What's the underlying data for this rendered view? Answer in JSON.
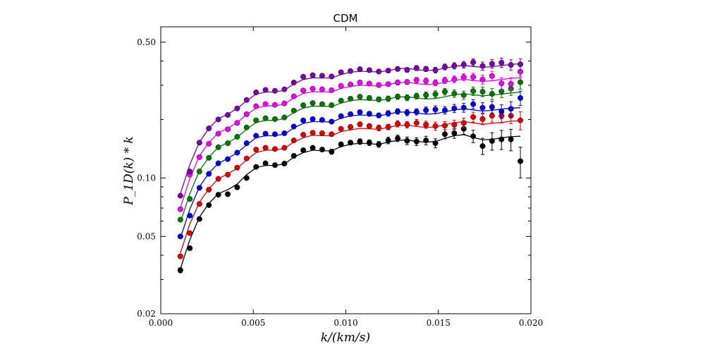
{
  "chart_data": {
    "type": "scatter",
    "title": "CDM",
    "xlabel": "k/(km/s)",
    "ylabel": "P_1D(k) * k",
    "xlim": [
      0.0,
      0.02
    ],
    "ylim": [
      0.02,
      0.6
    ],
    "yscale": "log",
    "xticks": [
      0.0,
      0.005,
      0.01,
      0.015,
      0.02
    ],
    "xtick_labels": [
      "0.000",
      "0.005",
      "0.010",
      "0.015",
      "0.020"
    ],
    "yticks": [
      0.02,
      0.05,
      0.1,
      0.5
    ],
    "ytick_labels": [
      "0.02",
      "0.05",
      "0.10",
      "0.50"
    ],
    "legend": "none",
    "grid": false,
    "x": [
      0.00106,
      0.00157,
      0.00209,
      0.0026,
      0.00311,
      0.00362,
      0.00413,
      0.00464,
      0.00515,
      0.00566,
      0.00617,
      0.00668,
      0.00719,
      0.0077,
      0.00821,
      0.00872,
      0.00923,
      0.00974,
      0.01025,
      0.01076,
      0.01127,
      0.01178,
      0.01229,
      0.0128,
      0.01331,
      0.01382,
      0.01433,
      0.01484,
      0.01535,
      0.01586,
      0.01637,
      0.01688,
      0.01739,
      0.0179,
      0.01841,
      0.01892,
      0.01943
    ],
    "series": [
      {
        "color": "#000000",
        "points": [
          0.0335,
          0.0435,
          0.0615,
          0.0725,
          0.082,
          0.0825,
          0.0895,
          0.1,
          0.114,
          0.119,
          0.1165,
          0.1185,
          0.13,
          0.139,
          0.143,
          0.14,
          0.1365,
          0.149,
          0.152,
          0.154,
          0.152,
          0.149,
          0.156,
          0.16,
          0.1555,
          0.154,
          0.156,
          0.151,
          0.168,
          0.17,
          0.179,
          0.164,
          0.146,
          0.155,
          0.158,
          0.158,
          0.122
        ],
        "errors": [
          0.001,
          0.001,
          0.001,
          0.001,
          0.001,
          0.001,
          0.002,
          0.002,
          0.002,
          0.002,
          0.002,
          0.002,
          0.003,
          0.003,
          0.003,
          0.003,
          0.004,
          0.004,
          0.004,
          0.005,
          0.005,
          0.005,
          0.006,
          0.006,
          0.007,
          0.007,
          0.008,
          0.008,
          0.009,
          0.01,
          0.011,
          0.012,
          0.014,
          0.016,
          0.018,
          0.02,
          0.022
        ],
        "model": [
          0.034,
          0.048,
          0.063,
          0.074,
          0.083,
          0.087,
          0.093,
          0.104,
          0.113,
          0.116,
          0.116,
          0.118,
          0.128,
          0.135,
          0.139,
          0.138,
          0.138,
          0.145,
          0.149,
          0.151,
          0.15,
          0.149,
          0.153,
          0.156,
          0.157,
          0.154,
          0.153,
          0.154,
          0.16,
          0.165,
          0.167,
          0.162,
          0.157,
          0.158,
          0.161,
          0.163,
          0.164
        ]
      },
      {
        "color": "#dd0000",
        "points": [
          0.0395,
          0.052,
          0.0735,
          0.087,
          0.099,
          0.104,
          0.113,
          0.126,
          0.14,
          0.143,
          0.141,
          0.143,
          0.156,
          0.167,
          0.171,
          0.17,
          0.168,
          0.179,
          0.183,
          0.189,
          0.185,
          0.181,
          0.183,
          0.19,
          0.188,
          0.192,
          0.188,
          0.185,
          0.186,
          0.188,
          0.192,
          0.206,
          0.201,
          0.209,
          0.209,
          0.209,
          0.198
        ],
        "errors": [
          0.001,
          0.001,
          0.001,
          0.001,
          0.001,
          0.001,
          0.002,
          0.002,
          0.002,
          0.002,
          0.002,
          0.003,
          0.003,
          0.003,
          0.003,
          0.004,
          0.004,
          0.004,
          0.005,
          0.005,
          0.005,
          0.006,
          0.006,
          0.007,
          0.007,
          0.008,
          0.008,
          0.009,
          0.009,
          0.01,
          0.011,
          0.012,
          0.013,
          0.015,
          0.017,
          0.019,
          0.021
        ],
        "model": [
          0.041,
          0.058,
          0.075,
          0.088,
          0.099,
          0.105,
          0.112,
          0.124,
          0.135,
          0.139,
          0.139,
          0.142,
          0.153,
          0.161,
          0.166,
          0.165,
          0.165,
          0.173,
          0.177,
          0.18,
          0.179,
          0.178,
          0.182,
          0.186,
          0.187,
          0.184,
          0.182,
          0.183,
          0.188,
          0.192,
          0.195,
          0.192,
          0.189,
          0.191,
          0.193,
          0.196,
          0.197
        ]
      },
      {
        "color": "#0000dd",
        "points": [
          0.05,
          0.064,
          0.089,
          0.105,
          0.119,
          0.125,
          0.135,
          0.151,
          0.165,
          0.169,
          0.168,
          0.17,
          0.184,
          0.198,
          0.201,
          0.199,
          0.195,
          0.208,
          0.213,
          0.218,
          0.214,
          0.21,
          0.215,
          0.22,
          0.217,
          0.219,
          0.223,
          0.225,
          0.223,
          0.228,
          0.23,
          0.24,
          0.23,
          0.232,
          0.22,
          0.227,
          0.258
        ],
        "errors": [
          0.001,
          0.001,
          0.001,
          0.001,
          0.002,
          0.002,
          0.002,
          0.002,
          0.002,
          0.003,
          0.003,
          0.003,
          0.003,
          0.004,
          0.004,
          0.004,
          0.005,
          0.005,
          0.005,
          0.006,
          0.006,
          0.006,
          0.007,
          0.007,
          0.008,
          0.008,
          0.009,
          0.01,
          0.01,
          0.011,
          0.012,
          0.013,
          0.014,
          0.016,
          0.018,
          0.02,
          0.022
        ],
        "model": [
          0.049,
          0.069,
          0.09,
          0.106,
          0.119,
          0.126,
          0.135,
          0.148,
          0.161,
          0.165,
          0.165,
          0.168,
          0.181,
          0.191,
          0.195,
          0.195,
          0.194,
          0.203,
          0.209,
          0.211,
          0.21,
          0.209,
          0.213,
          0.218,
          0.219,
          0.216,
          0.213,
          0.214,
          0.219,
          0.224,
          0.227,
          0.224,
          0.221,
          0.223,
          0.226,
          0.229,
          0.23
        ]
      },
      {
        "color": "#007700",
        "points": [
          0.061,
          0.078,
          0.108,
          0.127,
          0.144,
          0.151,
          0.163,
          0.182,
          0.198,
          0.203,
          0.201,
          0.205,
          0.222,
          0.237,
          0.243,
          0.24,
          0.237,
          0.25,
          0.256,
          0.262,
          0.258,
          0.254,
          0.256,
          0.262,
          0.259,
          0.264,
          0.267,
          0.27,
          0.278,
          0.272,
          0.267,
          0.28,
          0.278,
          0.271,
          0.279,
          0.288,
          0.311
        ],
        "errors": [
          0.001,
          0.001,
          0.001,
          0.002,
          0.002,
          0.002,
          0.002,
          0.002,
          0.003,
          0.003,
          0.003,
          0.003,
          0.004,
          0.004,
          0.004,
          0.005,
          0.005,
          0.005,
          0.006,
          0.006,
          0.007,
          0.007,
          0.008,
          0.008,
          0.009,
          0.009,
          0.01,
          0.011,
          0.011,
          0.012,
          0.013,
          0.014,
          0.016,
          0.018,
          0.02,
          0.022,
          0.024
        ],
        "model": [
          0.059,
          0.083,
          0.109,
          0.128,
          0.144,
          0.152,
          0.162,
          0.178,
          0.193,
          0.198,
          0.198,
          0.202,
          0.217,
          0.229,
          0.234,
          0.234,
          0.233,
          0.243,
          0.25,
          0.253,
          0.252,
          0.25,
          0.255,
          0.261,
          0.262,
          0.258,
          0.255,
          0.256,
          0.262,
          0.268,
          0.271,
          0.268,
          0.265,
          0.267,
          0.27,
          0.274,
          0.276
        ]
      },
      {
        "color": "#ee00ee",
        "points": [
          0.069,
          0.104,
          0.128,
          0.15,
          0.169,
          0.178,
          0.192,
          0.213,
          0.234,
          0.24,
          0.238,
          0.242,
          0.263,
          0.282,
          0.288,
          0.286,
          0.283,
          0.298,
          0.303,
          0.31,
          0.306,
          0.301,
          0.304,
          0.31,
          0.312,
          0.319,
          0.316,
          0.309,
          0.318,
          0.322,
          0.33,
          0.331,
          0.321,
          0.335,
          0.307,
          0.305,
          0.352
        ],
        "errors": [
          0.001,
          0.001,
          0.001,
          0.002,
          0.002,
          0.002,
          0.002,
          0.003,
          0.003,
          0.003,
          0.003,
          0.004,
          0.004,
          0.004,
          0.005,
          0.005,
          0.005,
          0.006,
          0.006,
          0.007,
          0.007,
          0.008,
          0.008,
          0.009,
          0.009,
          0.01,
          0.011,
          0.011,
          0.012,
          0.013,
          0.014,
          0.015,
          0.017,
          0.019,
          0.021,
          0.023,
          0.025
        ],
        "model": [
          0.07,
          0.099,
          0.13,
          0.152,
          0.171,
          0.18,
          0.193,
          0.212,
          0.229,
          0.235,
          0.235,
          0.24,
          0.258,
          0.272,
          0.278,
          0.277,
          0.277,
          0.289,
          0.296,
          0.3,
          0.299,
          0.297,
          0.303,
          0.309,
          0.311,
          0.306,
          0.303,
          0.304,
          0.311,
          0.318,
          0.322,
          0.318,
          0.314,
          0.317,
          0.321,
          0.326,
          0.328
        ]
      },
      {
        "color": "#7a00aa",
        "points": [
          0.081,
          0.108,
          0.152,
          0.18,
          0.2,
          0.211,
          0.228,
          0.252,
          0.276,
          0.284,
          0.281,
          0.286,
          0.31,
          0.332,
          0.338,
          0.336,
          0.333,
          0.35,
          0.355,
          0.363,
          0.359,
          0.353,
          0.357,
          0.364,
          0.36,
          0.368,
          0.364,
          0.359,
          0.373,
          0.378,
          0.383,
          0.394,
          0.377,
          0.387,
          0.392,
          0.382,
          0.385
        ],
        "errors": [
          0.001,
          0.001,
          0.002,
          0.002,
          0.002,
          0.002,
          0.003,
          0.003,
          0.003,
          0.003,
          0.004,
          0.004,
          0.004,
          0.005,
          0.005,
          0.005,
          0.006,
          0.006,
          0.007,
          0.007,
          0.008,
          0.008,
          0.009,
          0.009,
          0.01,
          0.011,
          0.011,
          0.012,
          0.013,
          0.014,
          0.015,
          0.016,
          0.018,
          0.02,
          0.022,
          0.024,
          0.026
        ],
        "model": [
          0.083,
          0.117,
          0.153,
          0.18,
          0.202,
          0.213,
          0.228,
          0.25,
          0.27,
          0.277,
          0.277,
          0.283,
          0.305,
          0.321,
          0.328,
          0.327,
          0.327,
          0.341,
          0.35,
          0.354,
          0.353,
          0.351,
          0.357,
          0.365,
          0.367,
          0.361,
          0.357,
          0.359,
          0.367,
          0.375,
          0.38,
          0.375,
          0.371,
          0.374,
          0.379,
          0.384,
          0.387
        ]
      }
    ]
  }
}
